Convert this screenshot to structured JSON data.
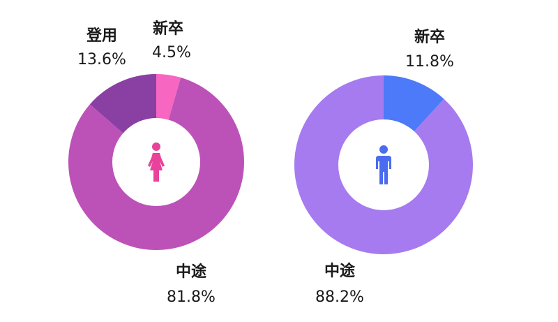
{
  "chart_data": [
    {
      "type": "pie",
      "subtype": "donut",
      "icon": "female-person-icon",
      "icon_color": "#e8429a",
      "slices": [
        {
          "label": "新卒",
          "value": 4.5,
          "display": "4.5%",
          "color": "#f766c0"
        },
        {
          "label": "中途",
          "value": 81.8,
          "display": "81.8%",
          "color": "#bc52b8"
        },
        {
          "label": "登用",
          "value": 13.6,
          "display": "13.6%",
          "color": "#8a3fa3"
        }
      ]
    },
    {
      "type": "pie",
      "subtype": "donut",
      "icon": "male-person-icon",
      "icon_color": "#4a6cf0",
      "slices": [
        {
          "label": "新卒",
          "value": 11.8,
          "display": "11.8%",
          "color": "#4d7af8"
        },
        {
          "label": "中途",
          "value": 88.2,
          "display": "88.2%",
          "color": "#a67bef"
        }
      ]
    }
  ]
}
